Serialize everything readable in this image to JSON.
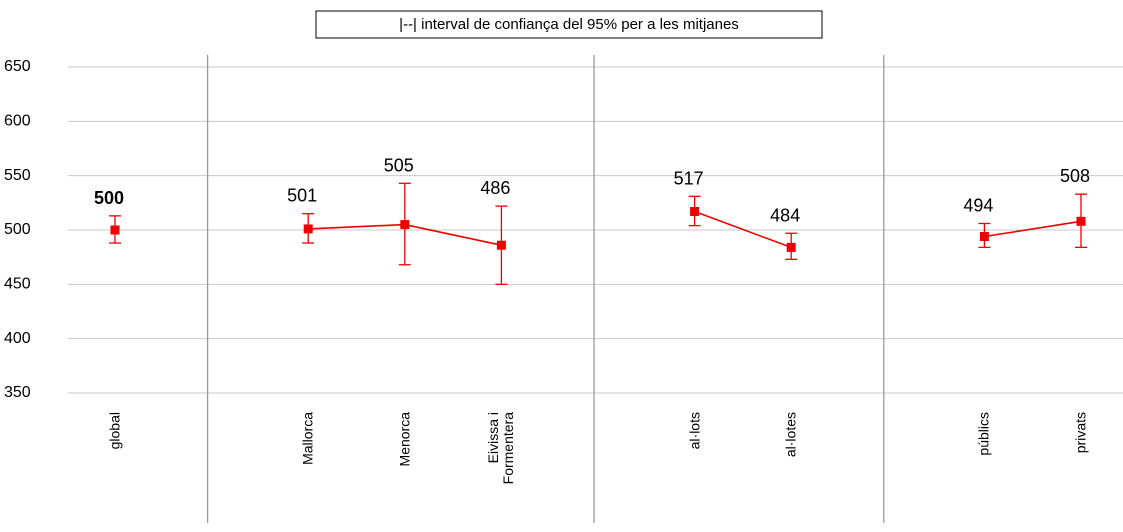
{
  "chart_data": {
    "type": "line",
    "legend": "|--| interval de confiança del 95% per a les mitjanes",
    "categories": [
      "global",
      null,
      "Mallorca",
      "Menorca",
      "Eivissa i Formentera",
      null,
      "al·lots",
      "al·lotes",
      null,
      "públics",
      "privats"
    ],
    "values": [
      500,
      null,
      501,
      505,
      486,
      null,
      517,
      484,
      null,
      494,
      508
    ],
    "ci_low": [
      488,
      null,
      488,
      468,
      450,
      null,
      504,
      473,
      null,
      484,
      484
    ],
    "ci_high": [
      513,
      null,
      515,
      543,
      522,
      null,
      531,
      497,
      null,
      506,
      533
    ],
    "bold_value_labels": [
      0
    ],
    "color": "#ee0000",
    "ylim": [
      350,
      650
    ],
    "yticks": [
      350,
      400,
      450,
      500,
      550,
      600,
      650
    ],
    "grid": true
  }
}
